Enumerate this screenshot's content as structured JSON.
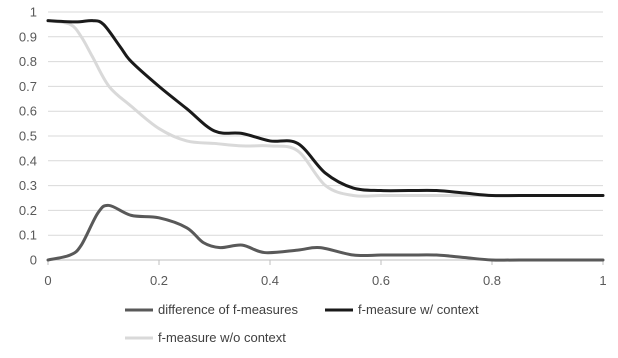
{
  "chart_data": {
    "type": "line",
    "title": "",
    "xlabel": "",
    "ylabel": "",
    "xlim": [
      0,
      1
    ],
    "ylim": [
      0,
      1
    ],
    "x_ticks": [
      0,
      0.2,
      0.4,
      0.6,
      0.8,
      1
    ],
    "x_tick_labels": [
      "0",
      "0.2",
      "0.4",
      "0.6",
      "0.8",
      "1"
    ],
    "y_ticks": [
      0,
      0.1,
      0.2,
      0.3,
      0.4,
      0.5,
      0.6,
      0.7,
      0.8,
      0.9,
      1
    ],
    "y_tick_labels": [
      "0",
      "0.1",
      "0.2",
      "0.3",
      "0.4",
      "0.5",
      "0.6",
      "0.7",
      "0.8",
      "0.9",
      "1"
    ],
    "grid": "horizontal",
    "legend_position": "bottom",
    "series": [
      {
        "name": "difference of f-measures",
        "color": "#595959",
        "x": [
          0,
          0.04,
          0.06,
          0.09,
          0.11,
          0.15,
          0.2,
          0.25,
          0.28,
          0.31,
          0.35,
          0.39,
          0.45,
          0.49,
          0.55,
          0.6,
          0.65,
          0.7,
          0.75,
          0.8,
          0.85,
          1.0
        ],
        "values": [
          0,
          0.02,
          0.06,
          0.19,
          0.22,
          0.18,
          0.17,
          0.13,
          0.07,
          0.05,
          0.06,
          0.03,
          0.04,
          0.05,
          0.02,
          0.02,
          0.02,
          0.02,
          0.01,
          0,
          0,
          0
        ]
      },
      {
        "name": "f-measure w/ context",
        "color": "#1a1a1a",
        "x": [
          0,
          0.05,
          0.08,
          0.1,
          0.13,
          0.15,
          0.2,
          0.25,
          0.3,
          0.35,
          0.4,
          0.45,
          0.5,
          0.55,
          0.6,
          0.65,
          0.7,
          0.75,
          0.8,
          0.85,
          1.0
        ],
        "values": [
          0.965,
          0.96,
          0.965,
          0.95,
          0.86,
          0.8,
          0.7,
          0.61,
          0.52,
          0.51,
          0.48,
          0.47,
          0.35,
          0.29,
          0.28,
          0.28,
          0.28,
          0.27,
          0.26,
          0.26,
          0.26
        ]
      },
      {
        "name": "f-measure w/o context",
        "color": "#d9d9d9",
        "x": [
          0,
          0.04,
          0.06,
          0.08,
          0.11,
          0.15,
          0.2,
          0.25,
          0.3,
          0.35,
          0.4,
          0.45,
          0.5,
          0.55,
          0.6,
          0.65,
          0.7,
          0.75,
          0.8,
          0.85,
          1.0
        ],
        "values": [
          0.965,
          0.95,
          0.9,
          0.82,
          0.7,
          0.62,
          0.53,
          0.48,
          0.47,
          0.46,
          0.46,
          0.44,
          0.3,
          0.26,
          0.26,
          0.26,
          0.26,
          0.26,
          0.26,
          0.26,
          0.26
        ]
      }
    ]
  }
}
